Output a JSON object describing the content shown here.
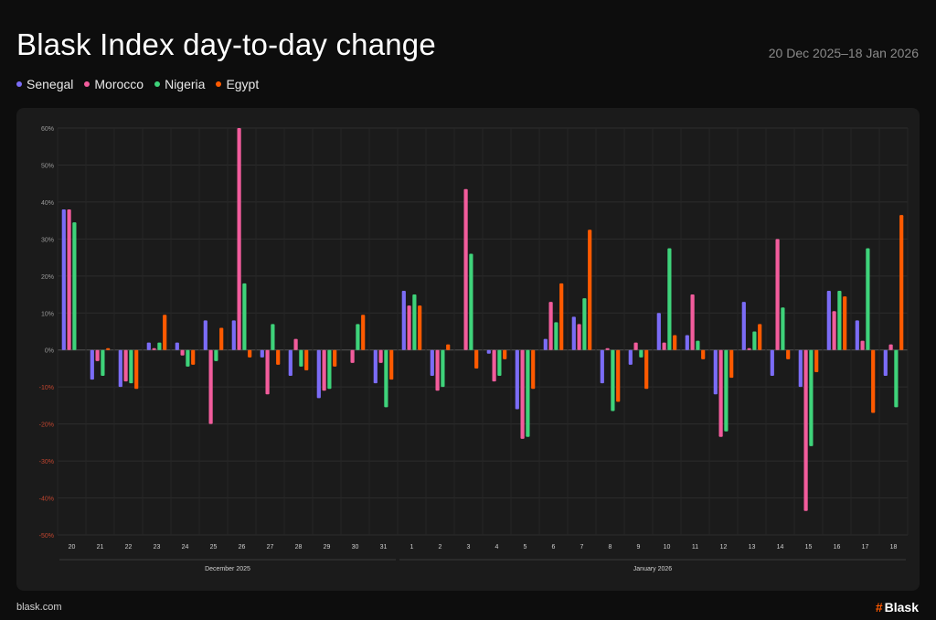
{
  "header": {
    "title": "Blask Index day-to-day change",
    "date_range": "20 Dec 2025–18 Jan 2026"
  },
  "footer": {
    "site": "blask.com",
    "brand_mark": "#",
    "brand_name": "Blask"
  },
  "colors": {
    "background": "#0d0d0d",
    "panel": "#1b1b1b",
    "positive_tick": "#9a9a9a",
    "negative_tick": "#c0452f"
  },
  "chart_data": {
    "type": "bar",
    "title": "Blask Index day-to-day change",
    "ylim": [
      -50,
      60
    ],
    "yticks": [
      60,
      50,
      40,
      30,
      20,
      10,
      0,
      -10,
      -20,
      -30,
      -40,
      -50
    ],
    "ytick_labels": [
      "60%",
      "50%",
      "40%",
      "30%",
      "20%",
      "10%",
      "0%",
      "-10%",
      "-20%",
      "-30%",
      "-40%",
      "-50%"
    ],
    "grid": true,
    "legend_position": "top-left",
    "categories": [
      "20",
      "21",
      "22",
      "23",
      "24",
      "25",
      "26",
      "27",
      "28",
      "29",
      "30",
      "31",
      "1",
      "2",
      "3",
      "4",
      "5",
      "6",
      "7",
      "8",
      "9",
      "10",
      "11",
      "12",
      "13",
      "14",
      "15",
      "16",
      "17",
      "18"
    ],
    "groups": [
      {
        "label": "December 2025",
        "start": 0,
        "end": 11
      },
      {
        "label": "January 2026",
        "start": 12,
        "end": 29
      }
    ],
    "series": [
      {
        "name": "Senegal",
        "color": "#7b6cf6",
        "values": [
          38,
          -8,
          -10,
          2,
          2,
          8,
          8,
          -2,
          -7,
          -13,
          0,
          -9,
          16,
          -7,
          0,
          -1,
          -16,
          3,
          9,
          -9,
          -4,
          10,
          4,
          -12,
          13,
          -7,
          -10,
          16,
          8,
          -7
        ]
      },
      {
        "name": "Morocco",
        "color": "#f25c9c",
        "values": [
          38,
          -3,
          -8.5,
          0.5,
          -1.5,
          -20,
          60,
          -12,
          3,
          -11,
          -3.5,
          -3.5,
          12,
          -11,
          43.5,
          -8.5,
          -24,
          13,
          7,
          0.5,
          2,
          2,
          15,
          -23.5,
          0.5,
          30,
          -43.5,
          10.5,
          2.5,
          1.5
        ]
      },
      {
        "name": "Nigeria",
        "color": "#3ed37a",
        "values": [
          34.5,
          -7,
          -9,
          2,
          -4.5,
          -3,
          18,
          7,
          -4.5,
          -10.5,
          7,
          -15.5,
          15,
          -10,
          26,
          -7,
          -23.5,
          7.5,
          14,
          -16.5,
          -2,
          27.5,
          2.5,
          -22,
          5,
          11.5,
          -26,
          16,
          27.5,
          -15.5
        ]
      },
      {
        "name": "Egypt",
        "color": "#ff5a00",
        "values": [
          0,
          0.5,
          -10.5,
          9.5,
          -4,
          6,
          -2,
          -4,
          -5.5,
          -4.5,
          9.5,
          -8,
          12,
          1.5,
          -5,
          -2.5,
          -10.5,
          18,
          32.5,
          -14,
          -10.5,
          4,
          -2.5,
          -7.5,
          7,
          -2.5,
          -6,
          14.5,
          -17,
          36.5
        ]
      }
    ]
  }
}
